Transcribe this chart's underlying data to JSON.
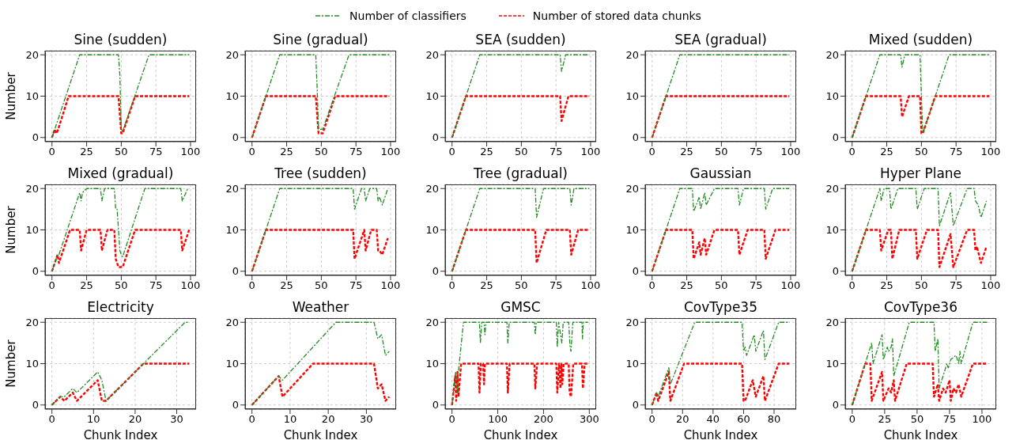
{
  "chart_data": [
    {
      "type": "line",
      "title": "Sine (sudden)",
      "ylabel": "Number",
      "legend": "top",
      "grid": true,
      "xlim": [
        -5,
        104
      ],
      "xticks": [
        0,
        25,
        50,
        75,
        100
      ],
      "ylim": [
        -1,
        21
      ],
      "yticks": [
        0,
        10,
        20
      ],
      "series": [
        {
          "name": "Number of classifiers",
          "color": "#228b22",
          "line_style": "dashdot",
          "x": [
            0,
            2,
            20,
            48,
            49,
            50,
            51,
            70,
            99
          ],
          "values": [
            0,
            2,
            20,
            20,
            15,
            2,
            1.5,
            20,
            20
          ]
        },
        {
          "name": "Number of stored data chunks",
          "color": "#ff0000",
          "line_style": "dashed",
          "x": [
            0,
            2,
            3,
            4,
            12,
            48,
            50,
            51,
            60,
            99
          ],
          "values": [
            0,
            2,
            1,
            1.5,
            10,
            10,
            1,
            1,
            10,
            10
          ]
        }
      ]
    },
    {
      "type": "line",
      "title": "Sine (gradual)",
      "grid": true,
      "xlim": [
        -5,
        104
      ],
      "xticks": [
        0,
        25,
        50,
        75,
        100
      ],
      "ylim": [
        -1,
        21
      ],
      "yticks": [
        0,
        10,
        20
      ],
      "series": [
        {
          "color": "#228b22",
          "line_style": "dashdot",
          "x": [
            0,
            20,
            46,
            47,
            48,
            51,
            70,
            99
          ],
          "values": [
            0,
            20,
            20,
            12,
            2,
            2,
            20,
            20
          ]
        },
        {
          "color": "#ff0000",
          "line_style": "dashed",
          "x": [
            0,
            10,
            46,
            48,
            51,
            60,
            99
          ],
          "values": [
            0,
            10,
            10,
            1,
            1,
            10,
            10
          ]
        }
      ]
    },
    {
      "type": "line",
      "title": "SEA (sudden)",
      "grid": true,
      "xlim": [
        -5,
        104
      ],
      "xticks": [
        0,
        25,
        50,
        75,
        100
      ],
      "ylim": [
        -1,
        21
      ],
      "yticks": [
        0,
        10,
        20
      ],
      "series": [
        {
          "color": "#228b22",
          "line_style": "dashdot",
          "x": [
            0,
            20,
            78,
            79,
            82,
            99
          ],
          "values": [
            0,
            20,
            20,
            16,
            20,
            20
          ]
        },
        {
          "color": "#ff0000",
          "line_style": "dashed",
          "x": [
            0,
            10,
            78,
            79,
            84,
            99
          ],
          "values": [
            0,
            10,
            10,
            4,
            10,
            10
          ]
        }
      ]
    },
    {
      "type": "line",
      "title": "SEA (gradual)",
      "grid": true,
      "xlim": [
        -5,
        104
      ],
      "xticks": [
        0,
        25,
        50,
        75,
        100
      ],
      "ylim": [
        -1,
        21
      ],
      "yticks": [
        0,
        10,
        20
      ],
      "series": [
        {
          "color": "#228b22",
          "line_style": "dashdot",
          "x": [
            0,
            20,
            99
          ],
          "values": [
            0,
            20,
            20
          ]
        },
        {
          "color": "#ff0000",
          "line_style": "dashed",
          "x": [
            0,
            10,
            99
          ],
          "values": [
            0,
            10,
            10
          ]
        }
      ]
    },
    {
      "type": "line",
      "title": "Mixed (sudden)",
      "grid": true,
      "xlim": [
        -5,
        104
      ],
      "xticks": [
        0,
        25,
        50,
        75,
        100
      ],
      "ylim": [
        -1,
        21
      ],
      "yticks": [
        0,
        10,
        20
      ],
      "series": [
        {
          "color": "#228b22",
          "line_style": "dashdot",
          "x": [
            0,
            20,
            35,
            36,
            38,
            49,
            50,
            51,
            70,
            99
          ],
          "values": [
            0,
            20,
            20,
            17,
            20,
            20,
            10,
            1,
            20,
            20
          ]
        },
        {
          "color": "#ff0000",
          "line_style": "dashed",
          "x": [
            0,
            10,
            35,
            36,
            41,
            49,
            50,
            51,
            60,
            99
          ],
          "values": [
            0,
            10,
            10,
            5,
            10,
            10,
            1,
            1,
            10,
            10
          ]
        }
      ]
    },
    {
      "type": "line",
      "title": "Mixed (gradual)",
      "ylabel": "Number",
      "grid": true,
      "xlim": [
        -5,
        104
      ],
      "xticks": [
        0,
        25,
        50,
        75,
        100
      ],
      "ylim": [
        -1,
        21
      ],
      "yticks": [
        0,
        10,
        20
      ],
      "series": [
        {
          "color": "#228b22",
          "line_style": "dashdot",
          "x": [
            0,
            4,
            5,
            19,
            20,
            21,
            22,
            25,
            35,
            36,
            38,
            45,
            46,
            47,
            48,
            49,
            50,
            51,
            67,
            93,
            94,
            98
          ],
          "values": [
            0,
            4,
            4,
            18,
            19,
            17,
            19,
            20,
            20,
            17,
            20,
            20,
            15,
            15,
            10,
            5,
            4,
            3.5,
            20,
            20,
            17,
            20
          ]
        },
        {
          "color": "#ff0000",
          "line_style": "dashed",
          "x": [
            0,
            4,
            5,
            13,
            20,
            21,
            25,
            35,
            36,
            40,
            45,
            46,
            48,
            51,
            60,
            93,
            94,
            99
          ],
          "values": [
            0,
            4,
            2,
            10,
            10,
            5,
            10,
            10,
            5,
            10,
            10,
            3,
            1,
            1,
            10,
            10,
            5,
            10
          ]
        }
      ]
    },
    {
      "type": "line",
      "title": "Tree (sudden)",
      "grid": true,
      "xlim": [
        -5,
        104
      ],
      "xticks": [
        0,
        25,
        50,
        75,
        100
      ],
      "ylim": [
        -1,
        21
      ],
      "yticks": [
        0,
        10,
        20
      ],
      "series": [
        {
          "color": "#228b22",
          "line_style": "dashdot",
          "x": [
            0,
            20,
            73,
            74,
            79,
            81,
            82,
            85,
            90,
            91,
            92,
            94,
            98
          ],
          "values": [
            0,
            20,
            20,
            15,
            20,
            20,
            17,
            20,
            20,
            17,
            18,
            16,
            20
          ]
        },
        {
          "color": "#ff0000",
          "line_style": "dashed",
          "x": [
            0,
            10,
            73,
            74,
            81,
            82,
            86,
            90,
            91,
            92,
            94,
            98
          ],
          "values": [
            0,
            10,
            10,
            3,
            10,
            5,
            10,
            10,
            5,
            5,
            4,
            8
          ]
        }
      ]
    },
    {
      "type": "line",
      "title": "Tree (gradual)",
      "grid": true,
      "xlim": [
        -5,
        104
      ],
      "xticks": [
        0,
        25,
        50,
        75,
        100
      ],
      "ylim": [
        -1,
        21
      ],
      "yticks": [
        0,
        10,
        20
      ],
      "series": [
        {
          "color": "#228b22",
          "line_style": "dashdot",
          "x": [
            0,
            20,
            60,
            61,
            66,
            85,
            86,
            88,
            99
          ],
          "values": [
            0,
            20,
            20,
            13,
            20,
            20,
            16,
            20,
            20
          ]
        },
        {
          "color": "#ff0000",
          "line_style": "dashed",
          "x": [
            0,
            10,
            60,
            61,
            68,
            85,
            86,
            91,
            99
          ],
          "values": [
            0,
            10,
            10,
            2,
            10,
            10,
            4,
            10,
            10
          ]
        }
      ]
    },
    {
      "type": "line",
      "title": "Gaussian",
      "grid": true,
      "xlim": [
        -5,
        104
      ],
      "xticks": [
        0,
        25,
        50,
        75,
        100
      ],
      "ylim": [
        -1,
        21
      ],
      "yticks": [
        0,
        10,
        20
      ],
      "series": [
        {
          "color": "#228b22",
          "line_style": "dashdot",
          "x": [
            0,
            20,
            29,
            30,
            33,
            34,
            35,
            38,
            39,
            45,
            62,
            63,
            66,
            81,
            82,
            87,
            99
          ],
          "values": [
            0,
            20,
            20,
            14.5,
            17,
            18,
            15,
            19,
            16,
            20,
            20,
            16,
            20,
            20,
            15,
            20,
            20
          ]
        },
        {
          "color": "#ff0000",
          "line_style": "dashed",
          "x": [
            0,
            10,
            29,
            30,
            34,
            35,
            38,
            39,
            45,
            62,
            63,
            69,
            81,
            82,
            89,
            99
          ],
          "values": [
            0,
            10,
            10,
            3,
            7,
            4,
            8,
            4,
            10,
            10,
            4,
            10,
            10,
            3,
            10,
            10
          ]
        }
      ]
    },
    {
      "type": "line",
      "title": "Hyper Plane",
      "grid": true,
      "xlim": [
        -5,
        104
      ],
      "xticks": [
        0,
        25,
        50,
        75,
        100
      ],
      "ylim": [
        -1,
        21
      ],
      "yticks": [
        0,
        10,
        20
      ],
      "series": [
        {
          "color": "#228b22",
          "line_style": "dashdot",
          "x": [
            0,
            20,
            21,
            23,
            27,
            28,
            33,
            46,
            47,
            52,
            62,
            63,
            71,
            72,
            73,
            83,
            88,
            89,
            91,
            93,
            97
          ],
          "values": [
            0,
            20,
            17,
            20,
            20,
            15,
            20,
            20,
            15,
            20,
            20,
            11,
            19,
            15,
            11,
            20,
            20,
            17,
            16,
            13,
            17
          ]
        },
        {
          "color": "#ff0000",
          "line_style": "dashed",
          "x": [
            0,
            10,
            20,
            21,
            26,
            28,
            29,
            34,
            46,
            47,
            54,
            62,
            63,
            71,
            73,
            83,
            88,
            89,
            90,
            93,
            97
          ],
          "values": [
            0,
            10,
            10,
            5,
            10,
            10,
            3,
            10,
            10,
            3,
            10,
            10,
            1,
            9,
            1,
            10,
            10,
            5,
            6,
            2,
            6
          ]
        }
      ]
    },
    {
      "type": "line",
      "title": "Electricity",
      "ylabel": "Number",
      "xlabel": "Chunk Index",
      "grid": true,
      "xlim": [
        -1.65,
        34.65
      ],
      "xticks": [
        0,
        10,
        20,
        30
      ],
      "ylim": [
        -1,
        21
      ],
      "yticks": [
        0,
        10,
        20
      ],
      "series": [
        {
          "color": "#228b22",
          "line_style": "dashdot",
          "x": [
            0,
            2,
            3,
            5,
            6,
            11,
            12,
            13,
            22,
            32,
            33
          ],
          "values": [
            0,
            2,
            2,
            4,
            3,
            8,
            6,
            1,
            10,
            20,
            20
          ]
        },
        {
          "color": "#ff0000",
          "line_style": "dashed",
          "x": [
            0,
            2,
            3,
            5,
            6,
            11,
            12,
            13,
            22,
            33
          ],
          "values": [
            0,
            2,
            1,
            3,
            1,
            6,
            1,
            1,
            10,
            10
          ]
        }
      ]
    },
    {
      "type": "line",
      "title": "Weather",
      "xlabel": "Chunk Index",
      "grid": true,
      "xlim": [
        -1.8,
        37.8
      ],
      "xticks": [
        0,
        10,
        20,
        30
      ],
      "ylim": [
        -1,
        21
      ],
      "yticks": [
        0,
        10,
        20
      ],
      "series": [
        {
          "color": "#228b22",
          "line_style": "dashdot",
          "x": [
            0,
            7,
            8,
            22,
            32,
            33,
            34,
            35,
            36
          ],
          "values": [
            0,
            7,
            6,
            20,
            20,
            16,
            17,
            12,
            13
          ]
        },
        {
          "color": "#ff0000",
          "line_style": "dashed",
          "x": [
            0,
            7,
            8,
            16,
            32,
            33,
            34,
            35,
            36
          ],
          "values": [
            0,
            7,
            2,
            10,
            10,
            4,
            5,
            1,
            2
          ]
        }
      ]
    },
    {
      "type": "line",
      "title": "GMSC",
      "xlabel": "Chunk Index",
      "grid": true,
      "xlim": [
        -15,
        315
      ],
      "xticks": [
        0,
        100,
        200,
        300
      ],
      "ylim": [
        -1,
        21
      ],
      "yticks": [
        0,
        10,
        20
      ],
      "series": [
        {
          "color": "#228b22",
          "line_style": "dashdot",
          "x": [
            0,
            8,
            12,
            14,
            25,
            60,
            62,
            65,
            70,
            72,
            74,
            120,
            122,
            125,
            180,
            182,
            184,
            228,
            230,
            233,
            240,
            243,
            255,
            258,
            260,
            264,
            284,
            285,
            287,
            297
          ],
          "values": [
            0,
            8,
            3,
            8,
            20,
            20,
            15,
            20,
            20,
            17,
            20,
            20,
            15,
            20,
            20,
            17,
            20,
            20,
            14,
            20,
            15,
            20,
            20,
            14,
            13,
            20,
            20,
            16,
            20,
            20
          ]
        },
        {
          "color": "#ff0000",
          "line_style": "dashed",
          "x": [
            0,
            7,
            9,
            12,
            14,
            20,
            58,
            60,
            63,
            68,
            70,
            72,
            120,
            122,
            126,
            180,
            182,
            186,
            228,
            230,
            234,
            237,
            239,
            241,
            244,
            255,
            257,
            260,
            265,
            284,
            286,
            290,
            297
          ],
          "values": [
            0,
            7,
            1,
            8,
            2,
            10,
            10,
            3,
            10,
            10,
            5,
            10,
            10,
            3,
            10,
            10,
            4,
            10,
            10,
            3,
            10,
            4,
            10,
            5,
            10,
            10,
            3,
            2,
            10,
            10,
            4,
            10,
            10
          ]
        }
      ]
    },
    {
      "type": "line",
      "title": "CovType35",
      "xlabel": "Chunk Index",
      "grid": true,
      "xlim": [
        -4.5,
        94.5
      ],
      "xticks": [
        0,
        20,
        40,
        60,
        80
      ],
      "ylim": [
        -1,
        21
      ],
      "yticks": [
        0,
        10,
        20
      ],
      "series": [
        {
          "color": "#228b22",
          "line_style": "dashdot",
          "x": [
            0,
            3,
            4,
            10,
            11,
            12,
            28,
            59,
            60,
            61,
            62,
            66,
            67,
            68,
            73,
            74,
            83,
            90
          ],
          "values": [
            0,
            3,
            2,
            8,
            9,
            5,
            20,
            20,
            13,
            14,
            12,
            16,
            17,
            13,
            18,
            11,
            20,
            20
          ]
        },
        {
          "color": "#ff0000",
          "line_style": "dashed",
          "x": [
            0,
            2,
            3,
            4,
            11,
            12,
            21,
            59,
            60,
            61,
            66,
            68,
            73,
            74,
            83,
            90
          ],
          "values": [
            0,
            2,
            3,
            1,
            8,
            1,
            10,
            10,
            1,
            1,
            6,
            2,
            7,
            1,
            10,
            10
          ]
        }
      ]
    },
    {
      "type": "line",
      "title": "CovType36",
      "xlabel": "Chunk Index",
      "grid": true,
      "xlim": [
        -5.4,
        111
      ],
      "xticks": [
        0,
        25,
        50,
        75,
        100
      ],
      "ylim": [
        -1,
        21
      ],
      "yticks": [
        0,
        10,
        20
      ],
      "series": [
        {
          "color": "#228b22",
          "line_style": "dashdot",
          "x": [
            0,
            10,
            15,
            16,
            23,
            24,
            27,
            28,
            30,
            31,
            32,
            44,
            63,
            64,
            66,
            67,
            73,
            74,
            76,
            80,
            82,
            83,
            84,
            93,
            104
          ],
          "values": [
            0,
            10,
            15,
            10,
            17,
            11,
            14,
            13,
            14,
            16,
            7,
            20,
            20,
            13,
            16,
            4,
            10,
            9,
            11,
            12,
            10,
            13,
            10,
            20,
            20
          ]
        },
        {
          "color": "#ff0000",
          "line_style": "dashed",
          "x": [
            0,
            10,
            14,
            15,
            23,
            24,
            28,
            30,
            32,
            33,
            42,
            62,
            63,
            66,
            67,
            70,
            72,
            75,
            76,
            78,
            80,
            82,
            84,
            93,
            104
          ],
          "values": [
            0,
            10,
            10,
            1,
            8,
            1,
            4,
            3,
            6,
            1,
            10,
            10,
            2,
            5,
            1,
            4,
            3,
            6,
            1,
            4,
            3,
            5,
            2,
            10,
            10
          ]
        }
      ]
    }
  ]
}
